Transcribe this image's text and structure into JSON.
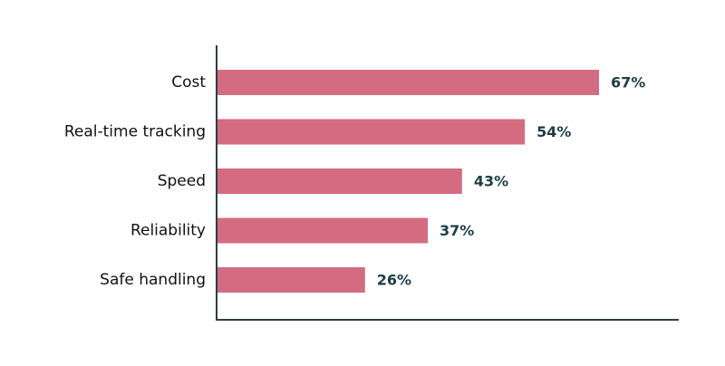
{
  "chart_data": {
    "type": "bar",
    "orientation": "horizontal",
    "categories": [
      "Cost",
      "Real-time tracking",
      "Speed",
      "Reliability",
      "Safe handling"
    ],
    "values": [
      67,
      54,
      43,
      37,
      26
    ],
    "value_labels": [
      "67%",
      "54%",
      "43%",
      "37%",
      "26%"
    ],
    "unit": "%",
    "xlim": [
      0,
      80
    ],
    "grid": false,
    "legend": "none"
  },
  "colors": {
    "bar": "#d36c80",
    "axis": "#2c3e46",
    "value_label": "#1d3d45",
    "category_label": "#111111"
  }
}
